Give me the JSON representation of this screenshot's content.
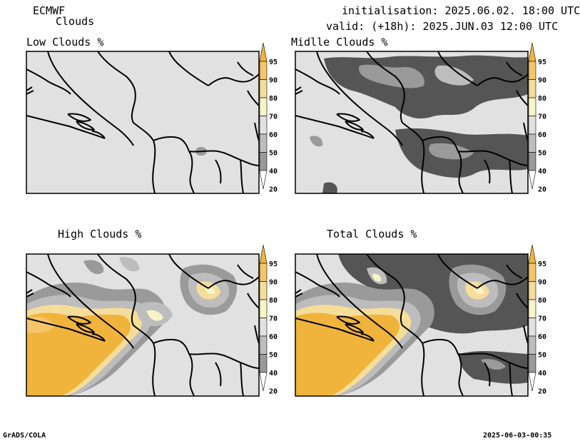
{
  "header": {
    "model": "ECMWF",
    "product": "Clouds",
    "init": "initialisation: 2025.06.02. 18:00 UTC",
    "valid": "valid: (+18h): 2025.JUN.03 12:00 UTC"
  },
  "panels": [
    {
      "title": "Low Clouds %"
    },
    {
      "title": "Midlle Clouds %"
    },
    {
      "title": "High Clouds %"
    },
    {
      "title": "Total Clouds %"
    }
  ],
  "colorbar": {
    "labels": [
      "95",
      "90",
      "80",
      "70",
      "60",
      "50",
      "40",
      "20"
    ],
    "colors": {
      "c95": "#f0b43c",
      "c90": "#f4c56a",
      "c80": "#f5dd9a",
      "c70": "#f7f5c8",
      "c60": "#e1e1e1",
      "c50": "#bdbdbd",
      "c40": "#9a9a9a",
      "c20": "#555555"
    }
  },
  "footer": {
    "left": "GrADS/COLA",
    "right": "2025-06-03-00:35"
  }
}
